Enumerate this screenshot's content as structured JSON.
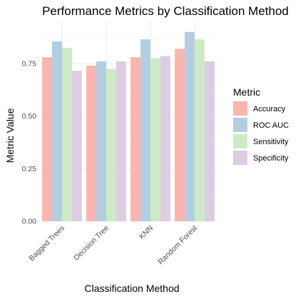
{
  "chart_data": {
    "type": "bar",
    "title": "Performance Metrics by Classification Method",
    "xlabel": "Classification Method",
    "ylabel": "Metric Value",
    "ylim": [
      0,
      0.95
    ],
    "yticks": [
      "0.00",
      "0.25",
      "0.50",
      "0.75"
    ],
    "grid": true,
    "legend_position": "right",
    "legend_title": "Metric",
    "categories": [
      "Bagged Trees",
      "Decision Tree",
      "KNN",
      "Random Forest"
    ],
    "series": [
      {
        "name": "Accuracy",
        "color": "#FBB4AE",
        "values": [
          0.78,
          0.74,
          0.78,
          0.82
        ]
      },
      {
        "name": "ROC AUC",
        "color": "#B3CDE3",
        "values": [
          0.855,
          0.76,
          0.865,
          0.9
        ]
      },
      {
        "name": "Sensitivity",
        "color": "#CCEBC5",
        "values": [
          0.825,
          0.725,
          0.775,
          0.865
        ]
      },
      {
        "name": "Specificity",
        "color": "#DECBE4",
        "values": [
          0.715,
          0.76,
          0.785,
          0.76
        ]
      }
    ]
  }
}
